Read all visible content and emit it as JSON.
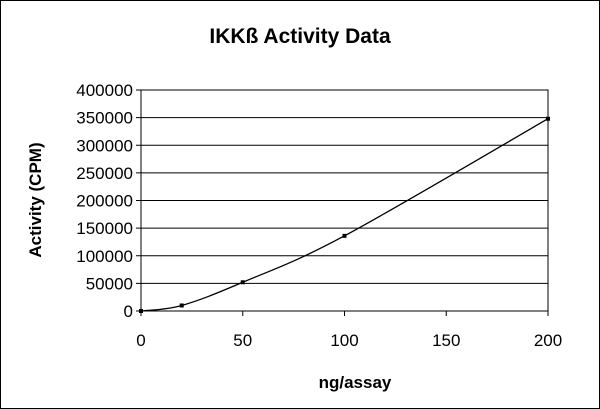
{
  "chart_data": {
    "type": "scatter",
    "title": "IKKß Activity Data",
    "xlabel": "ng/assay",
    "ylabel": "Activity (CPM)",
    "xlim": [
      0,
      200
    ],
    "ylim": [
      0,
      400000
    ],
    "x_ticks": [
      0,
      50,
      100,
      150,
      200
    ],
    "y_ticks": [
      0,
      50000,
      100000,
      150000,
      200000,
      250000,
      300000,
      350000,
      400000
    ],
    "grid": "horizontal",
    "legend": "none",
    "series": [
      {
        "points": [
          {
            "x": 0,
            "y": 0
          },
          {
            "x": 20,
            "y": 10000
          },
          {
            "x": 50,
            "y": 52000
          },
          {
            "x": 100,
            "y": 136000
          },
          {
            "x": 200,
            "y": 348000
          }
        ],
        "marker": "square",
        "line": "smoothed"
      }
    ],
    "colors": {
      "line": "#000000",
      "marker": "#000000",
      "grid": "#000000",
      "frame": "#000000"
    }
  }
}
